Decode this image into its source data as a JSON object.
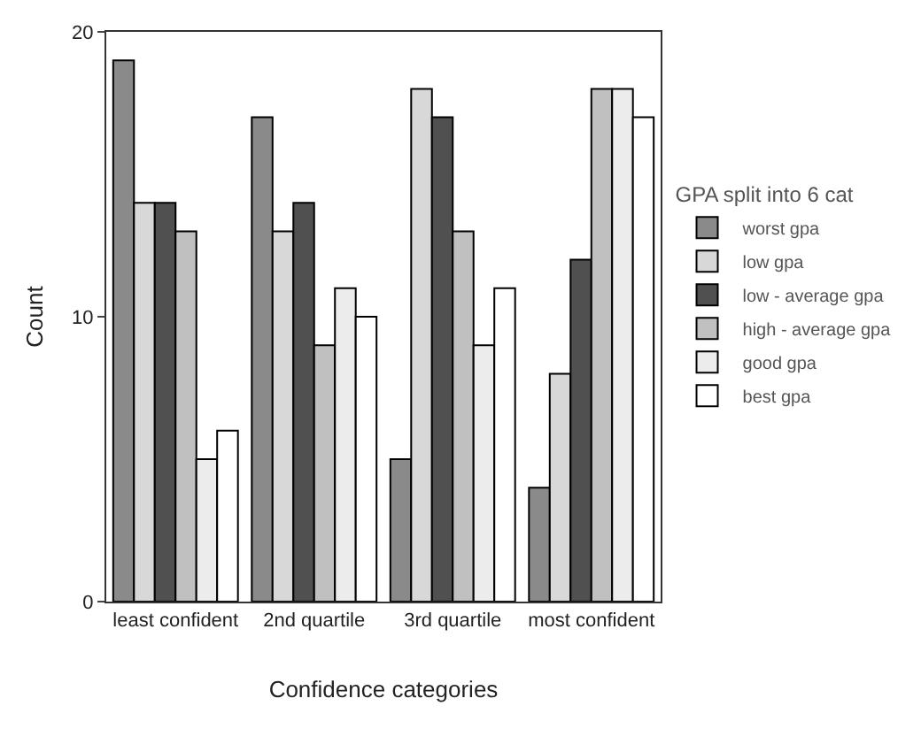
{
  "chart_data": {
    "type": "bar",
    "xlabel": "Confidence categories",
    "ylabel": "Count",
    "legend_title": "GPA split into 6 cat",
    "categories": [
      "least confident",
      "2nd quartile",
      "3rd quartile",
      "most confident"
    ],
    "series": [
      {
        "name": "worst gpa",
        "color": "#8a8a8a",
        "values": [
          19,
          17,
          5,
          4
        ]
      },
      {
        "name": "low gpa",
        "color": "#d8d8d8",
        "values": [
          14,
          13,
          18,
          8
        ]
      },
      {
        "name": "low - average gpa",
        "color": "#505050",
        "values": [
          14,
          14,
          17,
          12
        ]
      },
      {
        "name": "high - average gpa",
        "color": "#c0c0c0",
        "values": [
          13,
          9,
          13,
          18
        ]
      },
      {
        "name": "good gpa",
        "color": "#ececec",
        "values": [
          5,
          11,
          9,
          18
        ]
      },
      {
        "name": "best gpa",
        "color": "#ffffff",
        "values": [
          6,
          10,
          11,
          17
        ]
      }
    ],
    "ylim": [
      0,
      20
    ],
    "yticks": [
      0,
      10,
      20
    ],
    "grid": false,
    "legend": "right"
  }
}
